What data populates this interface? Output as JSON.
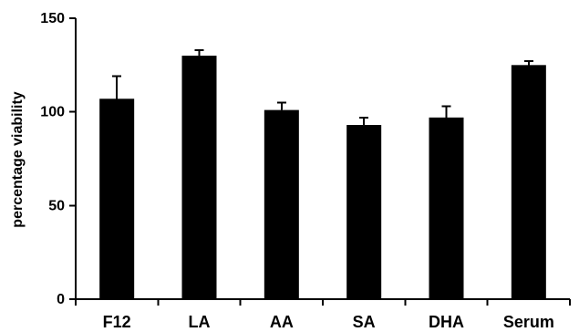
{
  "chart_data": {
    "type": "bar",
    "title": "",
    "xlabel": "",
    "ylabel": "percentage viability",
    "categories": [
      "F12",
      "LA",
      "AA",
      "SA",
      "DHA",
      "Serum"
    ],
    "values": [
      107,
      130,
      101,
      93,
      97,
      125
    ],
    "errors": [
      12,
      3,
      4,
      4,
      6,
      2
    ],
    "ylim": [
      0,
      150
    ],
    "yticks": [
      0,
      50,
      100,
      150
    ],
    "grid": false,
    "legend": "none",
    "colors": {
      "bar": "#000000",
      "axis": "#000000",
      "background": "#ffffff"
    }
  }
}
